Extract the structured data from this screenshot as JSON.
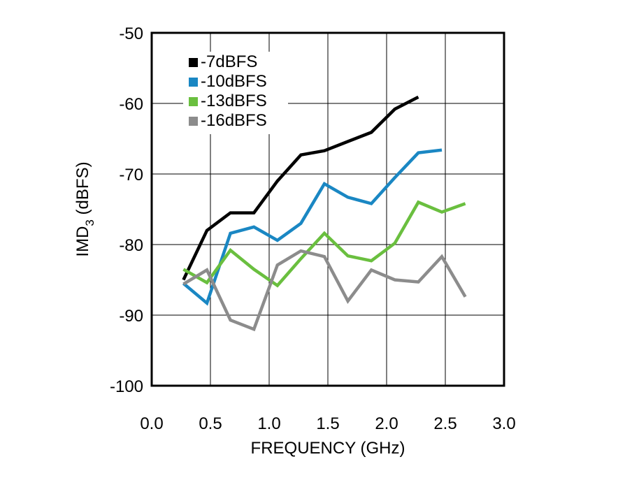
{
  "chart_data": {
    "type": "line",
    "xlabel": "FREQUENCY (GHz)",
    "ylabel_main": "IMD",
    "ylabel_sub": "3",
    "ylabel_unit": " (dBFS)",
    "xlim": [
      0,
      3
    ],
    "ylim": [
      -100,
      -50
    ],
    "xticks": [
      0.0,
      0.5,
      1.0,
      1.5,
      2.0,
      2.5,
      3.0
    ],
    "xtick_labels": [
      "0.0",
      "0.5",
      "1.0",
      "1.5",
      "2.0",
      "2.5",
      "3.0"
    ],
    "yticks": [
      -50,
      -60,
      -70,
      -80,
      -90,
      -100
    ],
    "ytick_labels": [
      "-50",
      "-60",
      "-70",
      "-80",
      "-90",
      "-100"
    ],
    "grid": true,
    "legend_position": "top-left",
    "series": [
      {
        "name": "-7dBFS",
        "color": "#000000",
        "x": [
          0.27,
          0.47,
          0.67,
          0.87,
          1.07,
          1.27,
          1.47,
          1.67,
          1.87,
          2.07,
          2.27
        ],
        "y": [
          -85.0,
          -78.0,
          -75.5,
          -75.5,
          -71.0,
          -67.3,
          -66.7,
          -65.4,
          -64.1,
          -60.8,
          -59.1
        ]
      },
      {
        "name": "-10dBFS",
        "color": "#1a87c3",
        "x": [
          0.27,
          0.47,
          0.67,
          0.87,
          1.07,
          1.27,
          1.47,
          1.67,
          1.87,
          2.07,
          2.27,
          2.47
        ],
        "y": [
          -85.5,
          -88.3,
          -78.4,
          -77.5,
          -79.4,
          -77.0,
          -71.4,
          -73.3,
          -74.2,
          -70.5,
          -67.0,
          -66.6
        ]
      },
      {
        "name": "-13dBFS",
        "color": "#6abf3f",
        "x": [
          0.27,
          0.47,
          0.67,
          0.87,
          1.07,
          1.27,
          1.47,
          1.67,
          1.87,
          2.07,
          2.27,
          2.47,
          2.67
        ],
        "y": [
          -83.5,
          -85.4,
          -80.8,
          -83.5,
          -85.8,
          -82.0,
          -78.4,
          -81.6,
          -82.3,
          -79.8,
          -74.0,
          -75.4,
          -74.2
        ]
      },
      {
        "name": "-16dBFS",
        "color": "#8c8c8c",
        "x": [
          0.27,
          0.47,
          0.67,
          0.87,
          1.07,
          1.27,
          1.47,
          1.67,
          1.87,
          2.07,
          2.27,
          2.47,
          2.67
        ],
        "y": [
          -85.6,
          -83.6,
          -90.7,
          -92.0,
          -82.9,
          -80.9,
          -81.7,
          -88.0,
          -83.6,
          -85.0,
          -85.3,
          -81.7,
          -87.4
        ]
      }
    ]
  }
}
